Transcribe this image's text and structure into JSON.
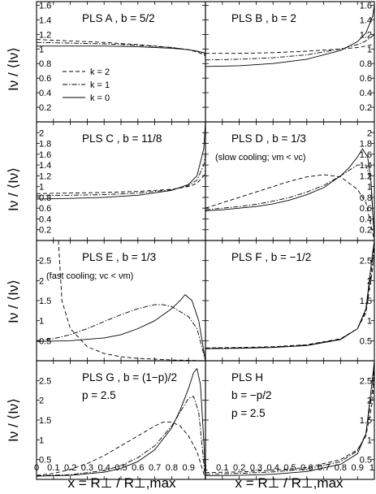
{
  "x_axis_label_left": "x = R⊥ / R⊥,max",
  "x_axis_label_right": "x = R⊥ / R⊥,max",
  "y_axis_label": "Iν / ⟨Iν⟩",
  "chart_data": [
    {
      "type": "line",
      "label": "PLS A ,  b = 5/2",
      "ylim": [
        0,
        1.65
      ],
      "yticks": [
        "0.2",
        "0.4",
        "0.6",
        "0.8",
        "1",
        "1.2",
        "1.4",
        "1.6"
      ],
      "legend": [
        {
          "name": "k = 2",
          "dash": "dashed"
        },
        {
          "name": "k = 1",
          "dash": "dashdot"
        },
        {
          "name": "k = 0",
          "dash": "solid"
        }
      ],
      "series": [
        {
          "name": "k = 2",
          "x": [
            0,
            0.2,
            0.4,
            0.6,
            0.8,
            0.9,
            0.95,
            0.99,
            1
          ],
          "y": [
            1.13,
            1.11,
            1.09,
            1.06,
            1.02,
            0.99,
            0.96,
            0.92,
            0.9
          ]
        },
        {
          "name": "k = 1",
          "x": [
            0,
            0.2,
            0.4,
            0.6,
            0.8,
            0.9,
            0.95,
            0.99,
            1
          ],
          "y": [
            1.09,
            1.08,
            1.07,
            1.05,
            1.02,
            0.99,
            0.97,
            0.94,
            0.92
          ]
        },
        {
          "name": "k = 0",
          "x": [
            0,
            0.2,
            0.4,
            0.6,
            0.8,
            0.9,
            0.95,
            0.99,
            1
          ],
          "y": [
            1.04,
            1.04,
            1.04,
            1.03,
            1.01,
            0.99,
            0.97,
            0.95,
            0.94
          ]
        }
      ]
    },
    {
      "type": "line",
      "label": "PLS B ,  b = 2",
      "ylim": [
        0,
        1.65
      ],
      "yticks": [
        "0.2",
        "0.4",
        "0.6",
        "0.8",
        "1",
        "1.2",
        "1.4",
        "1.6"
      ],
      "series": [
        {
          "name": "k = 2",
          "x": [
            0,
            0.2,
            0.4,
            0.6,
            0.8,
            0.9,
            0.95,
            0.99,
            1
          ],
          "y": [
            0.94,
            0.94,
            0.95,
            0.97,
            1.0,
            1.02,
            1.04,
            1.06,
            1.07
          ]
        },
        {
          "name": "k = 1",
          "x": [
            0,
            0.2,
            0.4,
            0.6,
            0.8,
            0.9,
            0.95,
            0.99,
            1
          ],
          "y": [
            0.85,
            0.86,
            0.88,
            0.92,
            1.0,
            1.06,
            1.11,
            1.18,
            1.2
          ]
        },
        {
          "name": "k = 0",
          "x": [
            0,
            0.2,
            0.4,
            0.6,
            0.8,
            0.9,
            0.95,
            0.99,
            1
          ],
          "y": [
            0.76,
            0.77,
            0.8,
            0.86,
            0.98,
            1.1,
            1.22,
            1.45,
            1.6
          ]
        }
      ]
    },
    {
      "type": "line",
      "label": "PLS C ,  b = 11/8",
      "ylim": [
        0,
        2.2
      ],
      "yticks": [
        "0.2",
        "0.4",
        "0.6",
        "0.8",
        "1",
        "1.2",
        "1.4",
        "1.6",
        "1.8",
        "2"
      ],
      "series": [
        {
          "name": "k = 2",
          "x": [
            0,
            0.2,
            0.4,
            0.6,
            0.8,
            0.9,
            0.95,
            0.99,
            1
          ],
          "y": [
            0.87,
            0.88,
            0.89,
            0.91,
            0.95,
            1.0,
            1.06,
            1.2,
            1.3
          ]
        },
        {
          "name": "k = 1",
          "x": [
            0,
            0.2,
            0.4,
            0.6,
            0.8,
            0.9,
            0.95,
            0.99,
            1
          ],
          "y": [
            0.83,
            0.84,
            0.85,
            0.88,
            0.94,
            1.02,
            1.12,
            1.4,
            1.6
          ]
        },
        {
          "name": "k = 0",
          "x": [
            0,
            0.2,
            0.4,
            0.6,
            0.8,
            0.9,
            0.95,
            0.99,
            1
          ],
          "y": [
            0.77,
            0.78,
            0.8,
            0.84,
            0.93,
            1.04,
            1.2,
            1.7,
            2.2
          ]
        }
      ]
    },
    {
      "type": "line",
      "label": "PLS D ,  b = 1/3",
      "note": "(slow cooling; νm < νc)",
      "ylim": [
        0,
        2.2
      ],
      "yticks": [
        "0.2",
        "0.4",
        "0.6",
        "0.8",
        "1",
        "1.2",
        "1.4",
        "1.6",
        "1.8",
        "2"
      ],
      "series": [
        {
          "name": "k = 2",
          "x": [
            0,
            0.1,
            0.2,
            0.3,
            0.4,
            0.5,
            0.6,
            0.7,
            0.8,
            0.9,
            0.95,
            1
          ],
          "y": [
            0.6,
            0.7,
            0.8,
            0.9,
            1.0,
            1.1,
            1.18,
            1.22,
            1.18,
            0.95,
            0.7,
            0
          ]
        },
        {
          "name": "k = 1",
          "x": [
            0,
            0.1,
            0.2,
            0.3,
            0.4,
            0.5,
            0.6,
            0.7,
            0.8,
            0.85,
            0.9,
            0.95,
            0.98,
            1
          ],
          "y": [
            0.57,
            0.6,
            0.63,
            0.67,
            0.73,
            0.8,
            0.9,
            1.02,
            1.2,
            1.3,
            1.4,
            1.4,
            1.1,
            0
          ]
        },
        {
          "name": "k = 0",
          "x": [
            0,
            0.1,
            0.2,
            0.3,
            0.4,
            0.5,
            0.6,
            0.7,
            0.8,
            0.85,
            0.9,
            0.93,
            0.96,
            0.98,
            1
          ],
          "y": [
            0.55,
            0.57,
            0.6,
            0.63,
            0.68,
            0.75,
            0.85,
            0.98,
            1.2,
            1.35,
            1.55,
            1.7,
            1.55,
            1.1,
            0
          ]
        }
      ]
    },
    {
      "type": "line",
      "label": "PLS E ,  b = 1/3",
      "note": "(fast cooling; νc < νm)",
      "ylim": [
        0,
        3
      ],
      "yticks": [
        "0.5",
        "1",
        "1.5",
        "2",
        "2.5"
      ],
      "series": [
        {
          "name": "k = 2",
          "x": [
            0.13,
            0.15,
            0.2,
            0.3,
            0.4,
            0.5,
            0.6,
            0.7,
            0.8,
            0.9,
            1
          ],
          "y": [
            3.0,
            1.5,
            0.8,
            0.35,
            0.18,
            0.1,
            0.06,
            0.04,
            0.02,
            0.01,
            0
          ]
        },
        {
          "name": "k = 1",
          "x": [
            0,
            0.1,
            0.2,
            0.3,
            0.4,
            0.5,
            0.6,
            0.7,
            0.75,
            0.8,
            0.9,
            0.95,
            1
          ],
          "y": [
            0.5,
            0.55,
            0.65,
            0.8,
            0.98,
            1.15,
            1.3,
            1.4,
            1.4,
            1.35,
            1.1,
            0.8,
            0
          ]
        },
        {
          "name": "k = 0",
          "x": [
            0,
            0.2,
            0.4,
            0.5,
            0.6,
            0.7,
            0.8,
            0.85,
            0.88,
            0.92,
            0.96,
            1
          ],
          "y": [
            0.48,
            0.5,
            0.57,
            0.65,
            0.8,
            1.0,
            1.3,
            1.5,
            1.65,
            1.5,
            1.0,
            0
          ]
        }
      ]
    },
    {
      "type": "line",
      "label": "PLS F ,  b = −1/2",
      "ylim": [
        0,
        3
      ],
      "yticks": [
        "0.5",
        "1",
        "1.5",
        "2",
        "2.5"
      ],
      "series": [
        {
          "name": "k = 2",
          "x": [
            0,
            0.2,
            0.4,
            0.6,
            0.8,
            0.9,
            0.95,
            0.99,
            1
          ],
          "y": [
            0.32,
            0.33,
            0.35,
            0.4,
            0.55,
            0.8,
            1.2,
            2.3,
            3.0
          ]
        },
        {
          "name": "k = 1",
          "x": [
            0,
            0.2,
            0.4,
            0.6,
            0.8,
            0.9,
            0.95,
            0.99,
            1
          ],
          "y": [
            0.31,
            0.32,
            0.34,
            0.39,
            0.54,
            0.8,
            1.25,
            2.5,
            3.0
          ]
        },
        {
          "name": "k = 0",
          "x": [
            0,
            0.2,
            0.4,
            0.6,
            0.8,
            0.9,
            0.95,
            0.99,
            1
          ],
          "y": [
            0.3,
            0.31,
            0.33,
            0.38,
            0.53,
            0.8,
            1.3,
            2.7,
            3.0
          ]
        }
      ]
    },
    {
      "type": "line",
      "label": "PLS G ,  b = (1−p)/2",
      "note": "p = 2.5",
      "ylim": [
        0,
        3
      ],
      "yticks": [
        "0.5",
        "1",
        "1.5",
        "2",
        "2.5"
      ],
      "series": [
        {
          "name": "k = 2",
          "x": [
            0,
            0.1,
            0.2,
            0.3,
            0.4,
            0.5,
            0.6,
            0.7,
            0.75,
            0.8,
            0.85,
            0.9,
            0.95,
            1
          ],
          "y": [
            0.1,
            0.15,
            0.25,
            0.4,
            0.6,
            0.85,
            1.1,
            1.35,
            1.45,
            1.45,
            1.35,
            1.1,
            0.7,
            0
          ]
        },
        {
          "name": "k = 1",
          "x": [
            0,
            0.2,
            0.4,
            0.5,
            0.6,
            0.7,
            0.8,
            0.85,
            0.9,
            0.93,
            0.96,
            1
          ],
          "y": [
            0.09,
            0.12,
            0.22,
            0.35,
            0.55,
            0.85,
            1.35,
            1.7,
            2.05,
            2.1,
            1.7,
            0
          ]
        },
        {
          "name": "k = 0",
          "x": [
            0,
            0.2,
            0.4,
            0.5,
            0.6,
            0.7,
            0.8,
            0.85,
            0.9,
            0.93,
            0.95,
            0.97,
            0.99,
            1
          ],
          "y": [
            0.08,
            0.1,
            0.18,
            0.28,
            0.45,
            0.75,
            1.3,
            1.75,
            2.3,
            2.7,
            2.8,
            2.4,
            1.0,
            0
          ]
        }
      ]
    },
    {
      "type": "line",
      "label": "PLS H",
      "note": "b = −p/2",
      "note2": "p = 2.5",
      "ylim": [
        0,
        3
      ],
      "yticks": [
        "0.5",
        "1",
        "1.5",
        "2",
        "2.5"
      ],
      "series": [
        {
          "name": "k = 2",
          "x": [
            0,
            0.2,
            0.4,
            0.6,
            0.8,
            0.9,
            0.95,
            0.99,
            1
          ],
          "y": [
            0.17,
            0.19,
            0.23,
            0.3,
            0.5,
            0.75,
            1.1,
            2.0,
            3.0
          ]
        },
        {
          "name": "k = 1",
          "x": [
            0,
            0.2,
            0.4,
            0.6,
            0.8,
            0.9,
            0.95,
            0.99,
            1
          ],
          "y": [
            0.13,
            0.15,
            0.19,
            0.26,
            0.45,
            0.72,
            1.15,
            2.3,
            3.0
          ]
        },
        {
          "name": "k = 0",
          "x": [
            0,
            0.2,
            0.4,
            0.6,
            0.8,
            0.9,
            0.95,
            0.99,
            1
          ],
          "y": [
            0.09,
            0.1,
            0.13,
            0.2,
            0.38,
            0.65,
            1.15,
            2.6,
            3.0
          ]
        }
      ]
    }
  ],
  "xticks_left": [
    "0",
    "0.1",
    "0.2",
    "0.3",
    "0.4",
    "0.5",
    "0.6",
    "0.7",
    "0.8",
    "0.9"
  ],
  "xticks_right": [
    "1",
    "0.1",
    "0.2",
    "0.3",
    "0.4",
    "0.5",
    "0.6",
    "0.7",
    "0.8",
    "0.9",
    "1"
  ]
}
